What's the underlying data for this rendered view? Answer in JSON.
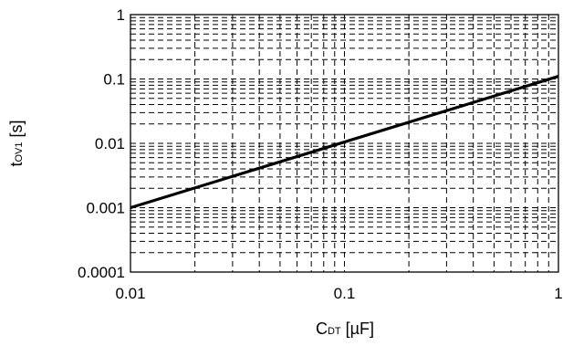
{
  "chart_data": {
    "type": "line",
    "x_scale": "log",
    "y_scale": "log",
    "xlim": [
      0.01,
      1
    ],
    "ylim": [
      0.0001,
      1
    ],
    "xticks": [
      {
        "value": 0.01,
        "label": "0.01"
      },
      {
        "value": 0.1,
        "label": "0.1"
      },
      {
        "value": 1,
        "label": "1"
      }
    ],
    "yticks": [
      {
        "value": 1,
        "label": "1"
      },
      {
        "value": 0.1,
        "label": "0.1"
      },
      {
        "value": 0.01,
        "label": "0.01"
      },
      {
        "value": 0.001,
        "label": "0.001"
      },
      {
        "value": 0.0001,
        "label": "0.0001"
      }
    ],
    "xlabel": {
      "main": "C",
      "sub": "DT",
      "unit": " [µF]"
    },
    "ylabel": {
      "main": "t",
      "sub": "OV1",
      "unit": " [s]"
    },
    "grid": true,
    "grid_style": "dashed",
    "series": [
      {
        "x": [
          0.01,
          1
        ],
        "y": [
          0.001,
          0.11
        ],
        "color": "#000000"
      }
    ]
  }
}
